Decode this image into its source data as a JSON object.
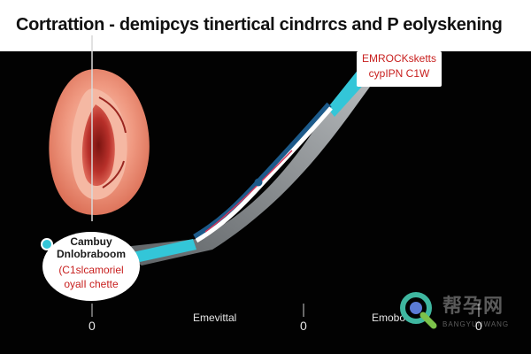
{
  "title": "Cortrattion - demipcys tinertical cindrrcs and P eolyskening",
  "top_label": {
    "line1": "EMROCKsketts",
    "line2": "cypIPN C1W"
  },
  "oval_label": {
    "line1": "Cambuy",
    "line2": "Dnlobraboom",
    "line3": "(C1slcamoriel",
    "line4": "oyalI chette"
  },
  "axis": {
    "tick_left": "0",
    "label_mid": "Emevittal",
    "tick_mid": "0",
    "label_right": "Emobo",
    "tick_right": "0"
  },
  "watermark": {
    "cn": "帮孕网",
    "en": "BANGYUNWANG"
  },
  "colors": {
    "background": "#020202",
    "accent_cyan": "#33c6d8",
    "curve_white": "#ffffff",
    "text_red": "#c8201f",
    "organ": "#e8806a"
  }
}
